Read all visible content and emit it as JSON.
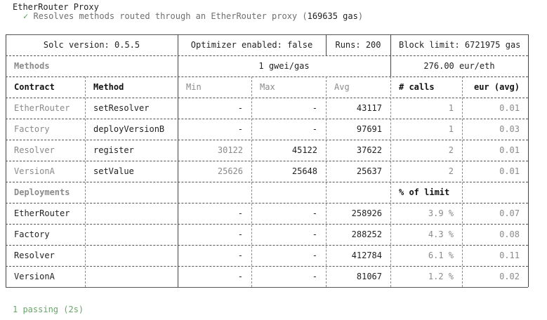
{
  "suite": {
    "title": "EtherRouter Proxy",
    "check": "✓",
    "test_desc": "Resolves methods routed through an EtherRouter proxy (",
    "gas": "169635 gas",
    "gas_close": ")"
  },
  "config": {
    "solc": "Solc version: 0.5.5",
    "optimizer": "Optimizer enabled: false",
    "runs": "Runs: 200",
    "block_limit": "Block limit: 6721975 gas"
  },
  "methods_section": {
    "label": "Methods",
    "gas_price": "1 gwei/gas",
    "eur_rate": "276.00 eur/eth"
  },
  "method_headers": {
    "contract": "Contract",
    "method": "Method",
    "min": "Min",
    "max": "Max",
    "avg": "Avg",
    "calls": "# calls",
    "eur": "eur (avg)"
  },
  "method_rows": [
    {
      "contract": "EtherRouter",
      "method": "setResolver",
      "min": "-",
      "max": "-",
      "avg": "43117",
      "calls": "1",
      "eur": "0.01"
    },
    {
      "contract": "Factory",
      "method": "deployVersionB",
      "min": "-",
      "max": "-",
      "avg": "97691",
      "calls": "1",
      "eur": "0.03"
    },
    {
      "contract": "Resolver",
      "method": "register",
      "min": "30122",
      "max": "45122",
      "avg": "37622",
      "calls": "2",
      "eur": "0.01"
    },
    {
      "contract": "VersionA",
      "method": "setValue",
      "min": "25626",
      "max": "25648",
      "avg": "25637",
      "calls": "2",
      "eur": "0.01"
    }
  ],
  "deployments_section": {
    "label": "Deployments",
    "pct_header": "% of limit"
  },
  "deployment_rows": [
    {
      "contract": "EtherRouter",
      "min": "-",
      "max": "-",
      "avg": "258926",
      "pct": "3.9 %",
      "eur": "0.07"
    },
    {
      "contract": "Factory",
      "min": "-",
      "max": "-",
      "avg": "288252",
      "pct": "4.3 %",
      "eur": "0.08"
    },
    {
      "contract": "Resolver",
      "min": "-",
      "max": "-",
      "avg": "412784",
      "pct": "6.1 %",
      "eur": "0.11"
    },
    {
      "contract": "VersionA",
      "min": "-",
      "max": "-",
      "avg": "81067",
      "pct": "1.2 %",
      "eur": "0.02"
    }
  ],
  "footer": {
    "passing": "1 passing (2s)"
  }
}
